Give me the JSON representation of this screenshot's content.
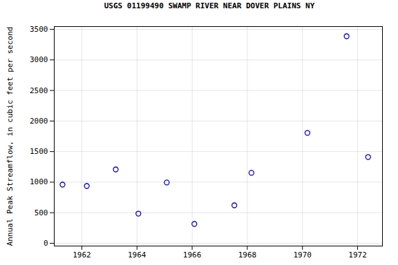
{
  "chart_data": {
    "type": "scatter",
    "title": "USGS 01199490 SWAMP RIVER NEAR DOVER PLAINS NY",
    "y_label": "Annual Peak Streamflow, in cubic feet per second",
    "x": [
      1961.3,
      1962.18,
      1963.23,
      1964.05,
      1965.08,
      1966.08,
      1967.53,
      1968.15,
      1970.18,
      1971.6,
      1972.38
    ],
    "values": [
      960,
      937,
      1208,
      485,
      994,
      316,
      621,
      1152,
      1806,
      3387,
      1411
    ],
    "color": "#0000cc",
    "marker": "circle-open",
    "xlim": [
      1961,
      1972.9
    ],
    "xticks": [
      1962,
      1964,
      1966,
      1968,
      1970,
      1972
    ],
    "ylim": [
      -45,
      3545
    ],
    "yticks": [
      0,
      500,
      1000,
      1500,
      2000,
      2500,
      3000,
      3500
    ],
    "grid": true
  }
}
